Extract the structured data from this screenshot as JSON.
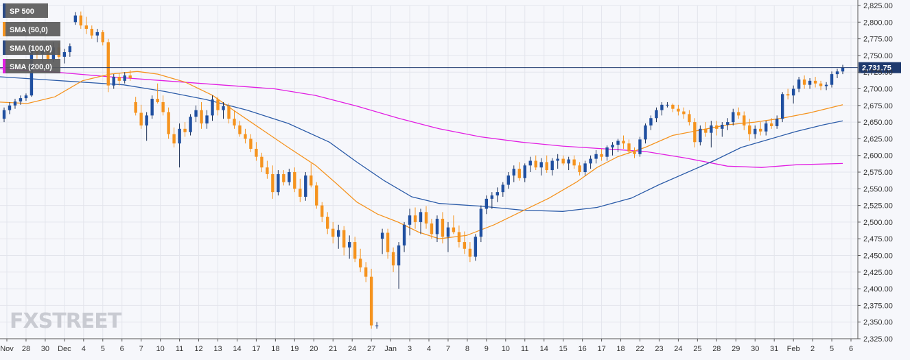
{
  "chart_data": {
    "type": "candlestick",
    "title": "",
    "legend": {
      "placement": "top-left",
      "entries": [
        {
          "label": "SP 500",
          "color": "#2b4a86"
        },
        {
          "label": "SMA (50,0)",
          "color": "#f5931e"
        },
        {
          "label": "SMA (100,0)",
          "color": "#2b4a86"
        },
        {
          "label": "SMA (200,0)",
          "color": "#e21ee2"
        }
      ]
    },
    "colors": {
      "up": "#1f4fa0",
      "down": "#f5931e",
      "sma50": "#f5931e",
      "sma100": "#2b5ba8",
      "sma200": "#e21ee2",
      "price_line": "#1f3a6e",
      "price_label_bg": "#1f3a6e"
    },
    "ylim": [
      2325,
      2825
    ],
    "y_ticks": [
      "2,325.00",
      "2,350.00",
      "2,375.00",
      "2,400.00",
      "2,425.00",
      "2,450.00",
      "2,475.00",
      "2,500.00",
      "2,525.00",
      "2,550.00",
      "2,575.00",
      "2,600.00",
      "2,625.00",
      "2,650.00",
      "2,675.00",
      "2,700.00",
      "2,725.00",
      "2,750.00",
      "2,775.00",
      "2,800.00",
      "2,825.00"
    ],
    "x_ticks": [
      "Nov",
      "28",
      "30",
      "Dec",
      "4",
      "5",
      "6",
      "7",
      "10",
      "11",
      "12",
      "13",
      "14",
      "17",
      "18",
      "19",
      "20",
      "21",
      "24",
      "27",
      "Jan",
      "3",
      "4",
      "7",
      "8",
      "9",
      "10",
      "11",
      "14",
      "15",
      "16",
      "17",
      "18",
      "22",
      "23",
      "24",
      "25",
      "28",
      "29",
      "30",
      "31",
      "Feb",
      "2",
      "5",
      "6"
    ],
    "current_price": 2731.75,
    "current_price_label": "2,731.75",
    "grid": true,
    "candles": [
      [
        2655,
        2672,
        2650,
        2668
      ],
      [
        2668,
        2680,
        2662,
        2675
      ],
      [
        2675,
        2685,
        2670,
        2681
      ],
      [
        2681,
        2690,
        2676,
        2686
      ],
      [
        2686,
        2693,
        2682,
        2690
      ],
      [
        2690,
        2760,
        2688,
        2758
      ],
      [
        2758,
        2768,
        2745,
        2752
      ],
      [
        2752,
        2764,
        2740,
        2758
      ],
      [
        2758,
        2765,
        2740,
        2744
      ],
      [
        2744,
        2770,
        2740,
        2762
      ],
      [
        2762,
        2768,
        2745,
        2748
      ],
      [
        2748,
        2760,
        2738,
        2755
      ],
      [
        2755,
        2768,
        2748,
        2764
      ],
      [
        2800,
        2815,
        2796,
        2810
      ],
      [
        2810,
        2816,
        2790,
        2795
      ],
      [
        2795,
        2808,
        2782,
        2790
      ],
      [
        2790,
        2795,
        2775,
        2780
      ],
      [
        2780,
        2790,
        2770,
        2785
      ],
      [
        2785,
        2788,
        2765,
        2770
      ],
      [
        2770,
        2775,
        2695,
        2705
      ],
      [
        2705,
        2722,
        2700,
        2718
      ],
      [
        2718,
        2724,
        2705,
        2712
      ],
      [
        2712,
        2725,
        2708,
        2720
      ],
      [
        2720,
        2728,
        2712,
        2716
      ],
      [
        2680,
        2688,
        2660,
        2664
      ],
      [
        2664,
        2676,
        2640,
        2645
      ],
      [
        2645,
        2665,
        2622,
        2660
      ],
      [
        2660,
        2690,
        2655,
        2685
      ],
      [
        2685,
        2708,
        2678,
        2680
      ],
      [
        2680,
        2690,
        2660,
        2665
      ],
      [
        2665,
        2672,
        2625,
        2632
      ],
      [
        2632,
        2642,
        2612,
        2618
      ],
      [
        2618,
        2648,
        2582,
        2640
      ],
      [
        2640,
        2650,
        2628,
        2635
      ],
      [
        2635,
        2662,
        2630,
        2658
      ],
      [
        2658,
        2675,
        2650,
        2668
      ],
      [
        2668,
        2680,
        2640,
        2648
      ],
      [
        2648,
        2668,
        2640,
        2660
      ],
      [
        2660,
        2690,
        2652,
        2684
      ],
      [
        2684,
        2688,
        2660,
        2668
      ],
      [
        2668,
        2680,
        2655,
        2674
      ],
      [
        2674,
        2678,
        2648,
        2655
      ],
      [
        2655,
        2668,
        2640,
        2645
      ],
      [
        2645,
        2652,
        2628,
        2632
      ],
      [
        2632,
        2640,
        2618,
        2625
      ],
      [
        2625,
        2632,
        2605,
        2610
      ],
      [
        2610,
        2620,
        2592,
        2598
      ],
      [
        2598,
        2604,
        2575,
        2582
      ],
      [
        2582,
        2592,
        2565,
        2572
      ],
      [
        2572,
        2585,
        2535,
        2545
      ],
      [
        2545,
        2578,
        2540,
        2572
      ],
      [
        2572,
        2578,
        2555,
        2560
      ],
      [
        2560,
        2580,
        2555,
        2575
      ],
      [
        2575,
        2582,
        2545,
        2550
      ],
      [
        2550,
        2565,
        2530,
        2538
      ],
      [
        2538,
        2575,
        2532,
        2570
      ],
      [
        2570,
        2588,
        2552,
        2555
      ],
      [
        2555,
        2560,
        2520,
        2525
      ],
      [
        2525,
        2530,
        2500,
        2508
      ],
      [
        2508,
        2515,
        2482,
        2490
      ],
      [
        2490,
        2500,
        2468,
        2478
      ],
      [
        2478,
        2496,
        2460,
        2488
      ],
      [
        2488,
        2494,
        2450,
        2462
      ],
      [
        2462,
        2480,
        2445,
        2470
      ],
      [
        2470,
        2478,
        2440,
        2445
      ],
      [
        2445,
        2460,
        2425,
        2432
      ],
      [
        2432,
        2440,
        2410,
        2418
      ],
      [
        2418,
        2430,
        2340,
        2345
      ],
      [
        2345,
        2350,
        2340,
        2345
      ],
      [
        2475,
        2490,
        2452,
        2484
      ],
      [
        2484,
        2490,
        2445,
        2455
      ],
      [
        2455,
        2462,
        2425,
        2435
      ],
      [
        2435,
        2470,
        2400,
        2465
      ],
      [
        2465,
        2500,
        2455,
        2496
      ],
      [
        2496,
        2520,
        2480,
        2510
      ],
      [
        2510,
        2522,
        2490,
        2500
      ],
      [
        2500,
        2520,
        2482,
        2515
      ],
      [
        2515,
        2524,
        2490,
        2498
      ],
      [
        2498,
        2505,
        2475,
        2482
      ],
      [
        2482,
        2510,
        2470,
        2505
      ],
      [
        2505,
        2515,
        2468,
        2478
      ],
      [
        2478,
        2500,
        2455,
        2492
      ],
      [
        2492,
        2510,
        2482,
        2485
      ],
      [
        2485,
        2495,
        2462,
        2470
      ],
      [
        2470,
        2486,
        2452,
        2460
      ],
      [
        2460,
        2470,
        2440,
        2448
      ],
      [
        2448,
        2482,
        2442,
        2478
      ],
      [
        2478,
        2525,
        2470,
        2520
      ],
      [
        2520,
        2540,
        2512,
        2535
      ],
      [
        2535,
        2545,
        2520,
        2540
      ],
      [
        2540,
        2552,
        2530,
        2545
      ],
      [
        2545,
        2560,
        2538,
        2556
      ],
      [
        2556,
        2575,
        2550,
        2570
      ],
      [
        2570,
        2585,
        2560,
        2580
      ],
      [
        2580,
        2590,
        2562,
        2566
      ],
      [
        2566,
        2588,
        2560,
        2585
      ],
      [
        2585,
        2598,
        2575,
        2592
      ],
      [
        2592,
        2600,
        2578,
        2582
      ],
      [
        2582,
        2596,
        2570,
        2590
      ],
      [
        2590,
        2600,
        2574,
        2578
      ],
      [
        2578,
        2596,
        2570,
        2592
      ],
      [
        2592,
        2602,
        2580,
        2595
      ],
      [
        2595,
        2600,
        2585,
        2588
      ],
      [
        2588,
        2598,
        2578,
        2594
      ],
      [
        2594,
        2600,
        2580,
        2585
      ],
      [
        2585,
        2590,
        2570,
        2575
      ],
      [
        2575,
        2592,
        2570,
        2588
      ],
      [
        2588,
        2600,
        2580,
        2595
      ],
      [
        2595,
        2608,
        2588,
        2602
      ],
      [
        2602,
        2610,
        2592,
        2598
      ],
      [
        2598,
        2615,
        2592,
        2612
      ],
      [
        2612,
        2620,
        2600,
        2616
      ],
      [
        2616,
        2625,
        2605,
        2622
      ],
      [
        2622,
        2630,
        2610,
        2618
      ],
      [
        2618,
        2624,
        2602,
        2606
      ],
      [
        2606,
        2612,
        2596,
        2602
      ],
      [
        2602,
        2628,
        2598,
        2624
      ],
      [
        2624,
        2648,
        2618,
        2645
      ],
      [
        2645,
        2660,
        2638,
        2656
      ],
      [
        2656,
        2672,
        2650,
        2668
      ],
      [
        2668,
        2680,
        2660,
        2676
      ],
      [
        2676,
        2680,
        2672,
        2676
      ],
      [
        2676,
        2678,
        2665,
        2670
      ],
      [
        2670,
        2676,
        2660,
        2666
      ],
      [
        2666,
        2672,
        2655,
        2662
      ],
      [
        2662,
        2668,
        2645,
        2650
      ],
      [
        2650,
        2656,
        2612,
        2620
      ],
      [
        2620,
        2645,
        2615,
        2640
      ],
      [
        2640,
        2650,
        2628,
        2634
      ],
      [
        2634,
        2652,
        2612,
        2645
      ],
      [
        2645,
        2652,
        2630,
        2640
      ],
      [
        2640,
        2650,
        2628,
        2646
      ],
      [
        2646,
        2656,
        2638,
        2650
      ],
      [
        2650,
        2670,
        2645,
        2665
      ],
      [
        2665,
        2672,
        2655,
        2660
      ],
      [
        2660,
        2666,
        2638,
        2645
      ],
      [
        2645,
        2655,
        2622,
        2632
      ],
      [
        2632,
        2645,
        2625,
        2640
      ],
      [
        2640,
        2650,
        2630,
        2636
      ],
      [
        2636,
        2652,
        2630,
        2648
      ],
      [
        2648,
        2656,
        2640,
        2644
      ],
      [
        2644,
        2660,
        2640,
        2655
      ],
      [
        2655,
        2695,
        2650,
        2692
      ],
      [
        2692,
        2700,
        2684,
        2690
      ],
      [
        2690,
        2705,
        2678,
        2700
      ],
      [
        2700,
        2718,
        2695,
        2714
      ],
      [
        2714,
        2720,
        2700,
        2706
      ],
      [
        2706,
        2716,
        2700,
        2712
      ],
      [
        2712,
        2718,
        2702,
        2708
      ],
      [
        2708,
        2712,
        2698,
        2704
      ],
      [
        2704,
        2710,
        2698,
        2706
      ],
      [
        2706,
        2726,
        2702,
        2722
      ],
      [
        2722,
        2730,
        2716,
        2726
      ],
      [
        2726,
        2736,
        2722,
        2732
      ]
    ],
    "sma50": [
      [
        0,
        2680
      ],
      [
        40,
        2678
      ],
      [
        80,
        2688
      ],
      [
        120,
        2712
      ],
      [
        160,
        2722
      ],
      [
        200,
        2726
      ],
      [
        230,
        2722
      ],
      [
        270,
        2710
      ],
      [
        310,
        2690
      ],
      [
        340,
        2668
      ],
      [
        380,
        2640
      ],
      [
        420,
        2612
      ],
      [
        460,
        2585
      ],
      [
        490,
        2558
      ],
      [
        520,
        2530
      ],
      [
        550,
        2512
      ],
      [
        580,
        2500
      ],
      [
        610,
        2485
      ],
      [
        640,
        2475
      ],
      [
        680,
        2480
      ],
      [
        720,
        2496
      ],
      [
        760,
        2516
      ],
      [
        800,
        2536
      ],
      [
        840,
        2560
      ],
      [
        870,
        2582
      ],
      [
        900,
        2598
      ],
      [
        940,
        2612
      ],
      [
        980,
        2630
      ],
      [
        1020,
        2638
      ],
      [
        1060,
        2646
      ],
      [
        1100,
        2650
      ],
      [
        1140,
        2656
      ],
      [
        1180,
        2664
      ],
      [
        1228,
        2676
      ]
    ],
    "sma100": [
      [
        0,
        2718
      ],
      [
        60,
        2714
      ],
      [
        120,
        2710
      ],
      [
        180,
        2706
      ],
      [
        240,
        2696
      ],
      [
        300,
        2684
      ],
      [
        360,
        2668
      ],
      [
        420,
        2648
      ],
      [
        480,
        2620
      ],
      [
        520,
        2590
      ],
      [
        560,
        2562
      ],
      [
        600,
        2538
      ],
      [
        640,
        2528
      ],
      [
        700,
        2524
      ],
      [
        760,
        2518
      ],
      [
        820,
        2516
      ],
      [
        870,
        2522
      ],
      [
        920,
        2536
      ],
      [
        960,
        2556
      ],
      [
        1000,
        2574
      ],
      [
        1040,
        2592
      ],
      [
        1080,
        2612
      ],
      [
        1120,
        2624
      ],
      [
        1160,
        2636
      ],
      [
        1200,
        2646
      ],
      [
        1228,
        2652
      ]
    ],
    "sma200": [
      [
        0,
        2730
      ],
      [
        80,
        2725
      ],
      [
        160,
        2718
      ],
      [
        240,
        2712
      ],
      [
        320,
        2706
      ],
      [
        400,
        2700
      ],
      [
        460,
        2690
      ],
      [
        520,
        2674
      ],
      [
        580,
        2656
      ],
      [
        640,
        2640
      ],
      [
        700,
        2628
      ],
      [
        760,
        2620
      ],
      [
        820,
        2614
      ],
      [
        880,
        2610
      ],
      [
        940,
        2606
      ],
      [
        1000,
        2596
      ],
      [
        1060,
        2584
      ],
      [
        1110,
        2582
      ],
      [
        1160,
        2586
      ],
      [
        1228,
        2588
      ]
    ]
  }
}
